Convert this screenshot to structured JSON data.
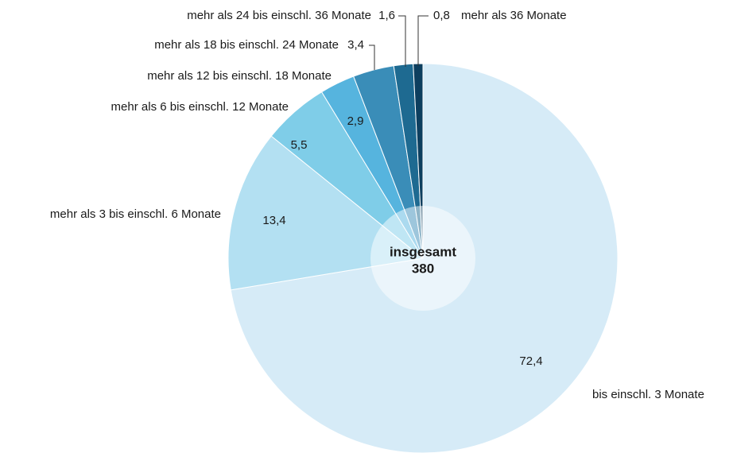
{
  "chart_data": {
    "type": "pie",
    "center_title": "insgesamt",
    "total": 380,
    "categories": [
      "bis einschl. 3 Monate",
      "mehr als 3 bis einschl. 6 Monate",
      "mehr als 6 bis einschl. 12 Monate",
      "mehr als 12 bis einschl. 18 Monate",
      "mehr als 18 bis einschl. 24 Monate",
      "mehr als 24 bis einschl. 36 Monate",
      "mehr als 36 Monate"
    ],
    "values": [
      72.4,
      13.4,
      5.5,
      2.9,
      3.4,
      1.6,
      0.8
    ],
    "value_labels": [
      "72,4",
      "13,4",
      "5,5",
      "2,9",
      "3,4",
      "1,6",
      "0,8"
    ],
    "colors": [
      "#d6ebf7",
      "#b3e0f2",
      "#7fcde8",
      "#56b4de",
      "#3a8db8",
      "#1e6a91",
      "#0d3f5f"
    ]
  }
}
